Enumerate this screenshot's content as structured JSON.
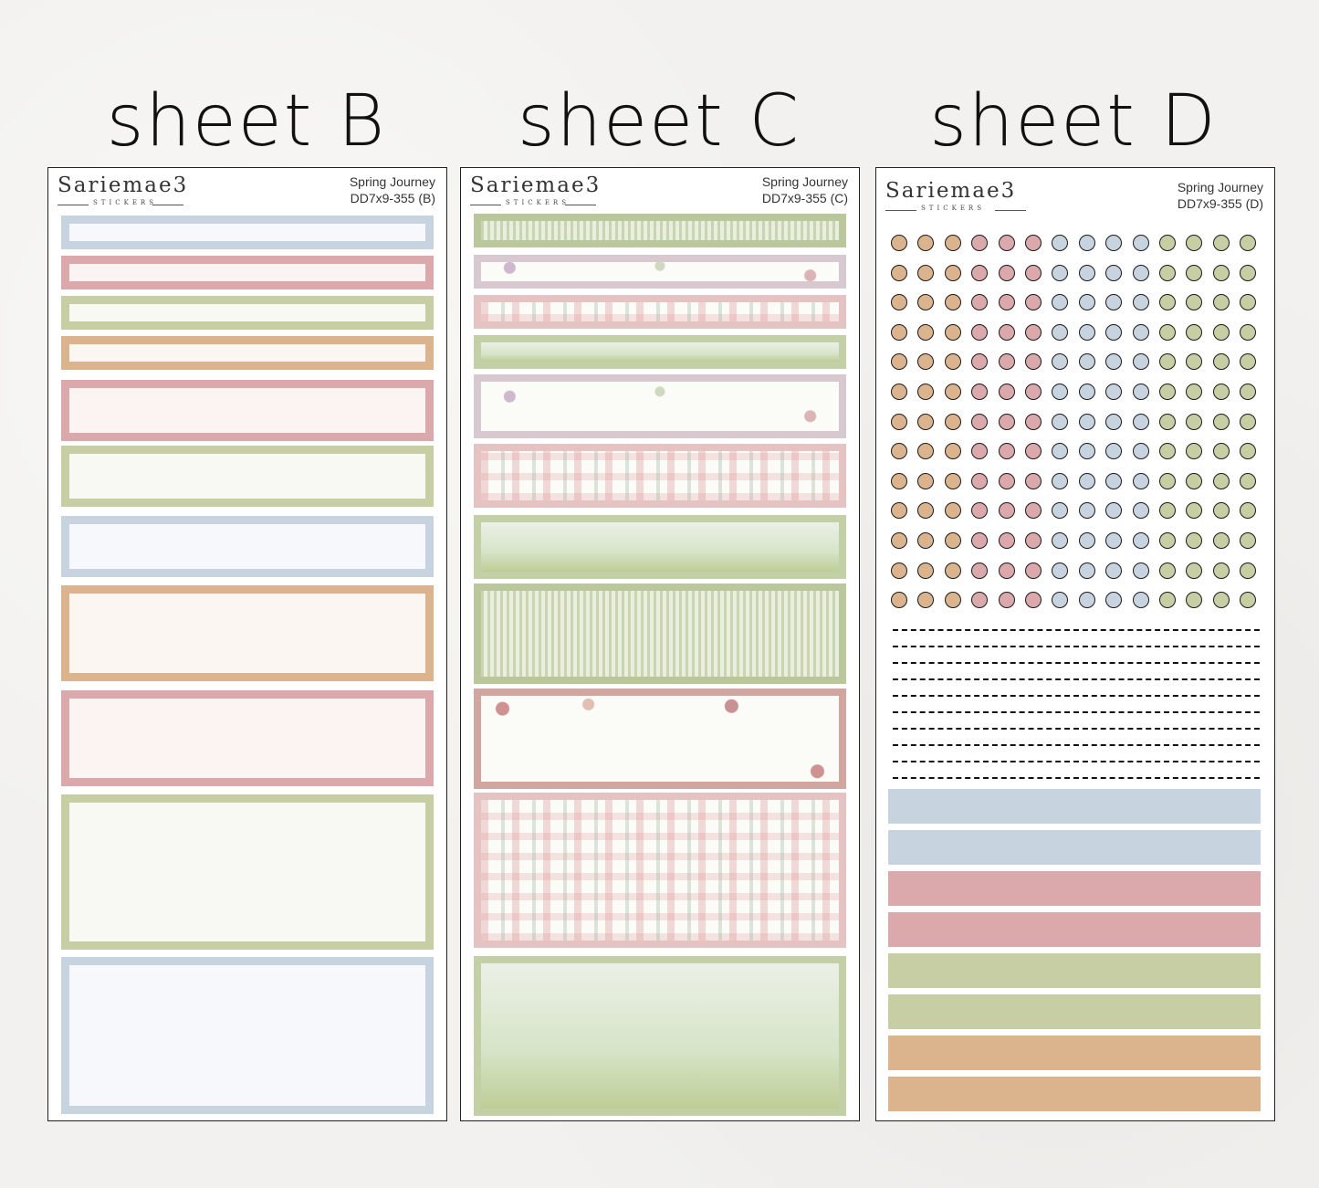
{
  "titles": {
    "b": "sheet B",
    "c": "sheet C",
    "d": "sheet D"
  },
  "brand": {
    "name": "Sariemae3",
    "tagline": "STICKERS"
  },
  "sheets": {
    "b": {
      "collection": "Spring Journey",
      "code": "DD7x9-355 (B)"
    },
    "c": {
      "collection": "Spring Journey",
      "code": "DD7x9-355 (C)"
    },
    "d": {
      "collection": "Spring Journey",
      "code": "DD7x9-355 (D)"
    }
  },
  "colors": {
    "blue": "#c7d3de",
    "pink": "#dba8ab",
    "green": "#c8cea4",
    "peach": "#dbb48e",
    "blue_fill": "#f6f8fb",
    "pink_fill": "#fcf3f3",
    "green_fill": "#f8f9f2",
    "peach_fill": "#fcf6f2"
  },
  "sheet_b_boxes": [
    "blue",
    "pink",
    "green",
    "peach",
    "pink",
    "green",
    "blue",
    "peach",
    "pink",
    "green",
    "blue"
  ],
  "sheet_c_patterns": [
    "greenery",
    "floral-lilac",
    "plaid",
    "landscape",
    "floral-lilac",
    "plaid",
    "landscape",
    "greenery",
    "floral-red",
    "plaid",
    "landscape"
  ],
  "sheet_d_dot_columns": [
    "peach",
    "peach",
    "peach",
    "pink",
    "pink",
    "pink",
    "blue",
    "blue",
    "blue",
    "blue",
    "green",
    "green",
    "green",
    "green"
  ],
  "sheet_d_dot_rows": 13,
  "sheet_d_dash_rows": 10,
  "sheet_d_strips": [
    "blue",
    "blue",
    "pink",
    "pink",
    "green",
    "green",
    "peach",
    "peach"
  ]
}
